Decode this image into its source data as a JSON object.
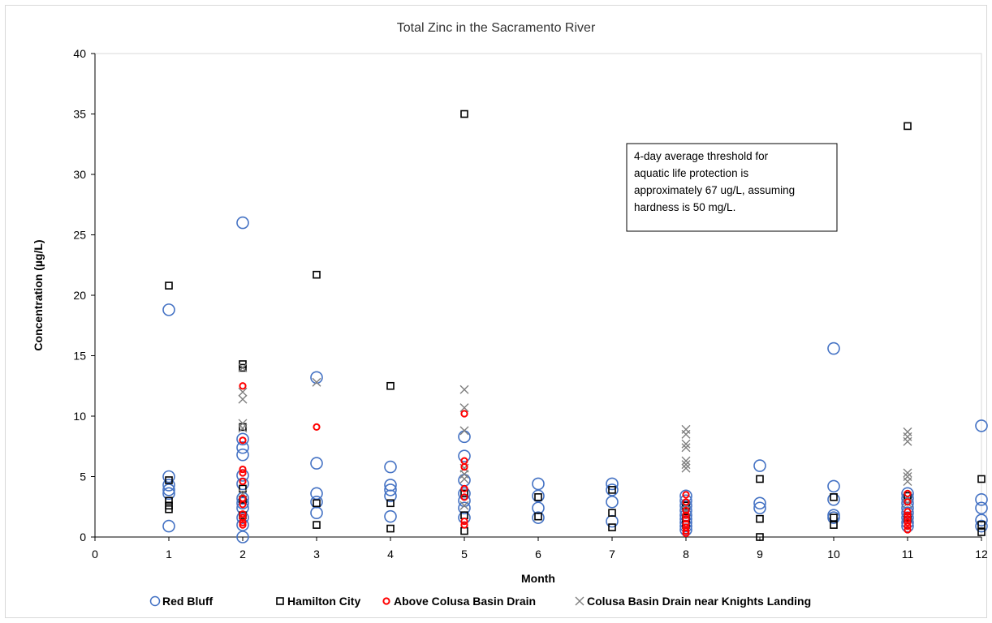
{
  "chart_data": {
    "type": "scatter",
    "title": "Total Zinc in the Sacramento River",
    "xlabel": "Month",
    "ylabel": "Concentration (µg/L)",
    "xlim": [
      0,
      12
    ],
    "ylim": [
      0,
      40
    ],
    "x_ticks": [
      "0",
      "1",
      "2",
      "3",
      "4",
      "5",
      "6",
      "7",
      "8",
      "9",
      "10",
      "11",
      "12"
    ],
    "y_ticks": [
      "0",
      "5",
      "10",
      "15",
      "20",
      "25",
      "30",
      "35",
      "40"
    ],
    "grid": false,
    "legend_position": "bottom",
    "annotation": [
      "4-day average threshold for",
      "aquatic life protection is",
      "approximately 67 ug/L, assuming",
      "hardness is 50 mg/L."
    ],
    "series": [
      {
        "name": "Red Bluff",
        "marker": "circle",
        "color": "#4472c4",
        "points": [
          [
            1,
            18.8
          ],
          [
            1,
            5.0
          ],
          [
            1,
            4.3
          ],
          [
            1,
            3.9
          ],
          [
            1,
            3.6
          ],
          [
            1,
            0.9
          ],
          [
            2,
            26.0
          ],
          [
            2,
            8.1
          ],
          [
            2,
            7.4
          ],
          [
            2,
            6.8
          ],
          [
            2,
            5.1
          ],
          [
            2,
            4.4
          ],
          [
            2,
            3.2
          ],
          [
            2,
            2.8
          ],
          [
            2,
            2.4
          ],
          [
            2,
            1.6
          ],
          [
            2,
            1.0
          ],
          [
            2,
            0.0
          ],
          [
            3,
            13.2
          ],
          [
            3,
            6.1
          ],
          [
            3,
            3.6
          ],
          [
            3,
            2.9
          ],
          [
            3,
            2.0
          ],
          [
            4,
            5.8
          ],
          [
            4,
            4.3
          ],
          [
            4,
            3.9
          ],
          [
            4,
            3.4
          ],
          [
            4,
            1.7
          ],
          [
            5,
            8.3
          ],
          [
            5,
            6.7
          ],
          [
            5,
            4.7
          ],
          [
            5,
            3.6
          ],
          [
            5,
            3.0
          ],
          [
            5,
            2.4
          ],
          [
            5,
            1.6
          ],
          [
            6,
            4.4
          ],
          [
            6,
            3.4
          ],
          [
            6,
            2.4
          ],
          [
            6,
            1.6
          ],
          [
            7,
            4.4
          ],
          [
            7,
            3.9
          ],
          [
            7,
            2.9
          ],
          [
            7,
            1.3
          ],
          [
            8,
            3.4
          ],
          [
            8,
            3.0
          ],
          [
            8,
            2.6
          ],
          [
            8,
            2.2
          ],
          [
            8,
            1.8
          ],
          [
            8,
            1.5
          ],
          [
            8,
            1.2
          ],
          [
            8,
            0.9
          ],
          [
            8,
            0.6
          ],
          [
            9,
            5.9
          ],
          [
            9,
            2.8
          ],
          [
            9,
            2.4
          ],
          [
            10,
            15.6
          ],
          [
            10,
            4.2
          ],
          [
            10,
            3.1
          ],
          [
            10,
            1.8
          ],
          [
            10,
            1.6
          ],
          [
            11,
            3.6
          ],
          [
            11,
            3.2
          ],
          [
            11,
            2.8
          ],
          [
            11,
            2.4
          ],
          [
            11,
            2.0
          ],
          [
            11,
            1.6
          ],
          [
            11,
            1.2
          ],
          [
            11,
            0.9
          ],
          [
            12,
            9.2
          ],
          [
            12,
            3.1
          ],
          [
            12,
            2.4
          ],
          [
            12,
            1.4
          ],
          [
            12,
            0.9
          ]
        ]
      },
      {
        "name": "Hamilton City",
        "marker": "square",
        "color": "#000000",
        "points": [
          [
            1,
            20.8
          ],
          [
            1,
            4.7
          ],
          [
            1,
            3.0
          ],
          [
            1,
            2.6
          ],
          [
            1,
            2.3
          ],
          [
            2,
            14.3
          ],
          [
            2,
            14.0
          ],
          [
            2,
            9.1
          ],
          [
            2,
            4.0
          ],
          [
            2,
            3.1
          ],
          [
            2,
            1.8
          ],
          [
            3,
            21.7
          ],
          [
            3,
            2.8
          ],
          [
            3,
            1.0
          ],
          [
            4,
            12.5
          ],
          [
            4,
            2.8
          ],
          [
            4,
            0.7
          ],
          [
            5,
            35.0
          ],
          [
            5,
            3.6
          ],
          [
            5,
            1.8
          ],
          [
            5,
            0.5
          ],
          [
            6,
            3.3
          ],
          [
            6,
            1.7
          ],
          [
            7,
            3.9
          ],
          [
            7,
            2.0
          ],
          [
            7,
            0.8
          ],
          [
            8,
            2.6
          ],
          [
            8,
            1.6
          ],
          [
            8,
            1.0
          ],
          [
            9,
            4.8
          ],
          [
            9,
            1.5
          ],
          [
            9,
            0.0
          ],
          [
            10,
            3.3
          ],
          [
            10,
            1.6
          ],
          [
            10,
            1.0
          ],
          [
            11,
            34.0
          ],
          [
            11,
            3.4
          ],
          [
            11,
            1.6
          ],
          [
            12,
            4.8
          ],
          [
            12,
            1.0
          ],
          [
            12,
            0.4
          ]
        ]
      },
      {
        "name": "Above Colusa Basin Drain",
        "marker": "circle-small",
        "color": "#ff0000",
        "points": [
          [
            2,
            12.5
          ],
          [
            2,
            8.0
          ],
          [
            2,
            5.6
          ],
          [
            2,
            5.3
          ],
          [
            2,
            4.6
          ],
          [
            2,
            3.2
          ],
          [
            2,
            2.7
          ],
          [
            2,
            1.9
          ],
          [
            2,
            1.6
          ],
          [
            2,
            1.2
          ],
          [
            2,
            1.0
          ],
          [
            3,
            9.1
          ],
          [
            5,
            10.2
          ],
          [
            5,
            6.3
          ],
          [
            5,
            5.8
          ],
          [
            5,
            4.0
          ],
          [
            5,
            3.3
          ],
          [
            5,
            1.3
          ],
          [
            5,
            1.0
          ],
          [
            8,
            3.5
          ],
          [
            8,
            2.9
          ],
          [
            8,
            2.2
          ],
          [
            8,
            1.8
          ],
          [
            8,
            1.5
          ],
          [
            8,
            1.1
          ],
          [
            8,
            0.8
          ],
          [
            8,
            0.5
          ],
          [
            8,
            0.3
          ],
          [
            11,
            3.6
          ],
          [
            11,
            2.9
          ],
          [
            11,
            2.1
          ],
          [
            11,
            1.8
          ],
          [
            11,
            1.5
          ],
          [
            11,
            1.2
          ],
          [
            11,
            0.9
          ],
          [
            11,
            0.6
          ]
        ]
      },
      {
        "name": "Colusa Basin Drain near Knights Landing",
        "marker": "x",
        "color": "#7f7f7f",
        "points": [
          [
            2,
            14.0
          ],
          [
            2,
            12.0
          ],
          [
            2,
            11.4
          ],
          [
            2,
            9.4
          ],
          [
            2,
            9.0
          ],
          [
            2,
            3.6
          ],
          [
            3,
            12.8
          ],
          [
            5,
            12.2
          ],
          [
            5,
            10.7
          ],
          [
            5,
            8.8
          ],
          [
            5,
            5.7
          ],
          [
            5,
            5.2
          ],
          [
            5,
            4.8
          ],
          [
            5,
            2.6
          ],
          [
            8,
            8.9
          ],
          [
            8,
            8.5
          ],
          [
            8,
            7.7
          ],
          [
            8,
            7.4
          ],
          [
            8,
            6.3
          ],
          [
            8,
            6.0
          ],
          [
            8,
            5.7
          ],
          [
            8,
            2.5
          ],
          [
            8,
            2.2
          ],
          [
            11,
            8.7
          ],
          [
            11,
            8.3
          ],
          [
            11,
            7.9
          ],
          [
            11,
            5.3
          ],
          [
            11,
            5.0
          ],
          [
            11,
            4.6
          ],
          [
            11,
            3.3
          ],
          [
            11,
            2.8
          ]
        ]
      }
    ]
  }
}
